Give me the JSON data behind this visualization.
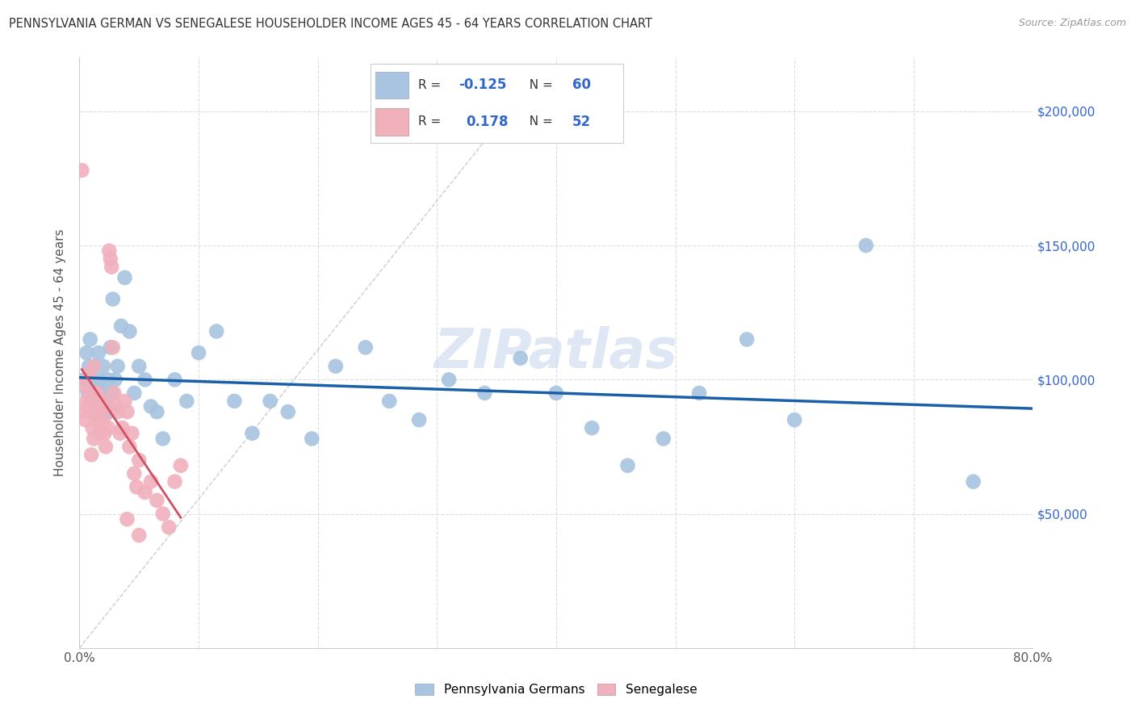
{
  "title": "PENNSYLVANIA GERMAN VS SENEGALESE HOUSEHOLDER INCOME AGES 45 - 64 YEARS CORRELATION CHART",
  "source": "Source: ZipAtlas.com",
  "ylabel": "Householder Income Ages 45 - 64 years",
  "xlim": [
    0.0,
    0.8
  ],
  "ylim": [
    0,
    220000
  ],
  "blue_R": "-0.125",
  "blue_N": "60",
  "pink_R": "0.178",
  "pink_N": "52",
  "blue_color": "#a8c4e0",
  "blue_line_color": "#1a5fa8",
  "pink_color": "#f0b0bc",
  "pink_line_color": "#d05060",
  "diag_color": "#cccccc",
  "grid_color": "#dddddd",
  "legend_label_blue": "Pennsylvania Germans",
  "legend_label_pink": "Senegalese",
  "watermark": "ZIPatlas",
  "right_y_color": "#3366cc",
  "blue_points_x": [
    0.004,
    0.006,
    0.007,
    0.008,
    0.009,
    0.01,
    0.011,
    0.012,
    0.013,
    0.014,
    0.015,
    0.016,
    0.017,
    0.018,
    0.019,
    0.02,
    0.021,
    0.022,
    0.023,
    0.024,
    0.025,
    0.026,
    0.027,
    0.028,
    0.03,
    0.032,
    0.035,
    0.038,
    0.042,
    0.046,
    0.05,
    0.055,
    0.06,
    0.065,
    0.07,
    0.08,
    0.09,
    0.1,
    0.115,
    0.13,
    0.145,
    0.16,
    0.175,
    0.195,
    0.215,
    0.24,
    0.26,
    0.285,
    0.31,
    0.34,
    0.37,
    0.4,
    0.43,
    0.46,
    0.49,
    0.52,
    0.56,
    0.6,
    0.66,
    0.75
  ],
  "blue_points_y": [
    100000,
    110000,
    95000,
    105000,
    115000,
    100000,
    92000,
    105000,
    98000,
    95000,
    88000,
    110000,
    100000,
    95000,
    90000,
    105000,
    88000,
    95000,
    92000,
    100000,
    88000,
    112000,
    95000,
    130000,
    100000,
    105000,
    120000,
    138000,
    118000,
    95000,
    105000,
    100000,
    90000,
    88000,
    78000,
    100000,
    92000,
    110000,
    118000,
    92000,
    80000,
    92000,
    88000,
    78000,
    105000,
    112000,
    92000,
    85000,
    100000,
    95000,
    108000,
    95000,
    82000,
    68000,
    78000,
    95000,
    115000,
    85000,
    150000,
    62000
  ],
  "pink_points_x": [
    0.002,
    0.003,
    0.004,
    0.005,
    0.006,
    0.007,
    0.008,
    0.009,
    0.01,
    0.011,
    0.012,
    0.013,
    0.014,
    0.015,
    0.016,
    0.017,
    0.018,
    0.019,
    0.02,
    0.021,
    0.022,
    0.023,
    0.024,
    0.025,
    0.026,
    0.027,
    0.028,
    0.029,
    0.03,
    0.032,
    0.034,
    0.036,
    0.038,
    0.04,
    0.042,
    0.044,
    0.046,
    0.048,
    0.05,
    0.055,
    0.06,
    0.065,
    0.07,
    0.075,
    0.08,
    0.085,
    0.01,
    0.012,
    0.015,
    0.018,
    0.04,
    0.05
  ],
  "pink_points_y": [
    178000,
    98000,
    88000,
    85000,
    92000,
    90000,
    102000,
    95000,
    88000,
    82000,
    105000,
    92000,
    88000,
    95000,
    85000,
    80000,
    90000,
    92000,
    85000,
    80000,
    75000,
    90000,
    82000,
    148000,
    145000,
    142000,
    112000,
    95000,
    90000,
    88000,
    80000,
    82000,
    92000,
    88000,
    75000,
    80000,
    65000,
    60000,
    70000,
    58000,
    62000,
    55000,
    50000,
    45000,
    62000,
    68000,
    72000,
    78000,
    85000,
    90000,
    48000,
    42000
  ]
}
